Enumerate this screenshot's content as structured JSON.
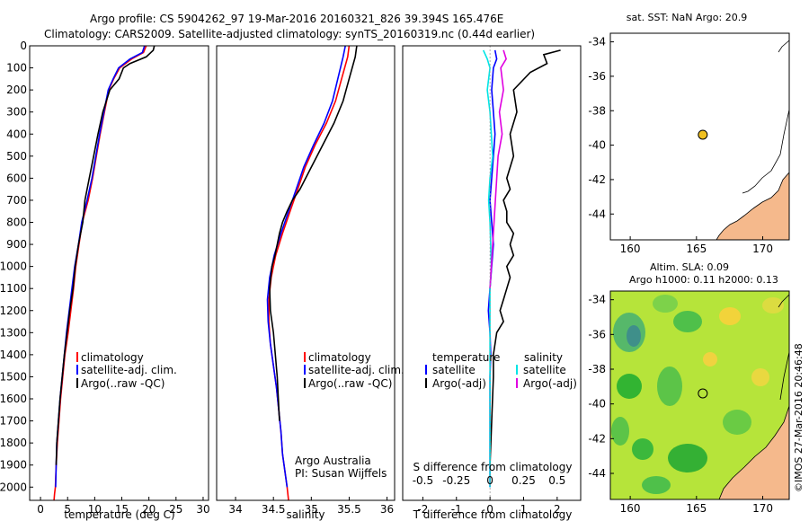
{
  "header": {
    "line1": "Argo profile: CS 5904262_97 19-Mar-2016 20160321_826 39.394S 165.476E",
    "line2": "Climatology: CARS2009. Satellite-adjusted climatology: synTS_20160319.nc (0.44d earlier)"
  },
  "credit": "©IMOS 27-Mar-2016 20:46:48",
  "colors": {
    "climatology": "#ff0000",
    "satellite": "#0000ff",
    "argo": "#000000",
    "salinity_satellite": "#00e5e5",
    "salinity_argo": "#e000e0",
    "float_marker": "#f0c020",
    "land": "#f5b98c"
  },
  "chart_data": [
    {
      "type": "line",
      "name": "temperature-profile",
      "title": "",
      "xlabel": "temperature (deg C)",
      "ylabel": "",
      "xlim": [
        -2,
        31
      ],
      "ylim": [
        2060,
        0
      ],
      "xticks": [
        "0",
        "5",
        "10",
        "15",
        "20",
        "25",
        "30"
      ],
      "xtick_values": [
        0,
        5,
        10,
        15,
        20,
        25,
        30
      ],
      "yticks": [
        "0",
        "100",
        "200",
        "300",
        "400",
        "500",
        "600",
        "700",
        "800",
        "900",
        "1000",
        "1100",
        "1200",
        "1300",
        "1400",
        "1500",
        "1600",
        "1700",
        "1800",
        "1900",
        "2000"
      ],
      "ytick_values": [
        0,
        100,
        200,
        300,
        400,
        500,
        600,
        700,
        800,
        900,
        1000,
        1100,
        1200,
        1300,
        1400,
        1500,
        1600,
        1700,
        1800,
        1900,
        2000
      ],
      "legend": {
        "position": "bottom-center",
        "entries": [
          "climatology",
          "satellite-adj. clim.",
          "Argo(..raw -QC)"
        ]
      },
      "series": [
        {
          "name": "climatology",
          "color": "#ff0000",
          "x": [
            19.5,
            19,
            16.8,
            14.6,
            13.5,
            12.6,
            11.8,
            11,
            10.3,
            9.6,
            8.8,
            7.7,
            7.1,
            6.5,
            6.1,
            5.6,
            5.1,
            4.5,
            4.1,
            3.7,
            3.4,
            3.1,
            2.9,
            2.75,
            2.6,
            2.5
          ],
          "y": [
            0,
            30,
            60,
            100,
            150,
            200,
            300,
            400,
            500,
            600,
            700,
            800,
            900,
            1000,
            1100,
            1200,
            1300,
            1400,
            1500,
            1600,
            1700,
            1800,
            1900,
            2000,
            2030,
            2060
          ]
        },
        {
          "name": "satellite-adj. clim.",
          "color": "#0000ff",
          "x": [
            19.2,
            18.8,
            16.5,
            14.4,
            13.4,
            12.5,
            11.7,
            10.9,
            10.2,
            9.5,
            8.6,
            7.6,
            7.0,
            6.3,
            5.8,
            5.3,
            4.8,
            4.4,
            4.0,
            3.6,
            3.3,
            3.0,
            2.9,
            2.8
          ],
          "y": [
            0,
            30,
            60,
            100,
            150,
            200,
            300,
            400,
            500,
            600,
            700,
            800,
            900,
            1000,
            1100,
            1200,
            1300,
            1400,
            1500,
            1600,
            1700,
            1800,
            1900,
            2000
          ]
        },
        {
          "name": "Argo(..raw -QC)",
          "color": "#000000",
          "x": [
            21,
            20.8,
            19.5,
            16.5,
            15.3,
            14.5,
            12.8,
            11.5,
            10.6,
            9.8,
            9.0,
            8.2,
            7.8,
            7.0,
            6.7,
            6.4,
            6.2,
            6.0,
            5.4,
            4.9,
            4.4,
            4.0,
            3.6,
            3.3,
            3.0,
            2.9
          ],
          "y": [
            0,
            20,
            50,
            80,
            100,
            150,
            200,
            300,
            400,
            500,
            600,
            700,
            800,
            900,
            950,
            1000,
            1050,
            1100,
            1200,
            1300,
            1400,
            1500,
            1600,
            1700,
            1800,
            1900
          ]
        }
      ]
    },
    {
      "type": "line",
      "name": "salinity-profile",
      "title": "",
      "xlabel": "salinity",
      "ylabel": "",
      "xlim": [
        33.75,
        36.1
      ],
      "ylim": [
        2060,
        0
      ],
      "xticks": [
        "34",
        "34.5",
        "35",
        "35.5",
        "36"
      ],
      "xtick_values": [
        34,
        34.5,
        35,
        35.5,
        36
      ],
      "annotations": [
        "Argo Australia",
        "PI: Susan Wijffels"
      ],
      "legend": {
        "position": "bottom-center",
        "entries": [
          "climatology",
          "satellite-adj. clim.",
          "Argo(..raw -QC)"
        ]
      },
      "series": [
        {
          "name": "climatology",
          "color": "#ff0000",
          "x": [
            35.5,
            35.48,
            35.4,
            35.32,
            35.2,
            35.05,
            34.92,
            34.82,
            34.72,
            34.62,
            34.53,
            34.47,
            34.44,
            34.44,
            34.46,
            34.5,
            34.54,
            34.57,
            34.6,
            34.62,
            34.64,
            34.66,
            34.68,
            34.69,
            34.7
          ],
          "y": [
            0,
            50,
            150,
            250,
            350,
            450,
            550,
            650,
            750,
            850,
            950,
            1050,
            1150,
            1250,
            1350,
            1450,
            1550,
            1650,
            1750,
            1850,
            1900,
            1950,
            2000,
            2030,
            2060
          ]
        },
        {
          "name": "satellite-adj. clim.",
          "color": "#0000ff",
          "x": [
            35.45,
            35.42,
            35.35,
            35.28,
            35.17,
            35.03,
            34.9,
            34.8,
            34.7,
            34.6,
            34.51,
            34.45,
            34.42,
            34.43,
            34.46,
            34.5,
            34.54,
            34.57,
            34.6,
            34.62,
            34.64,
            34.66,
            34.68
          ],
          "y": [
            0,
            50,
            150,
            250,
            350,
            450,
            550,
            650,
            750,
            850,
            950,
            1050,
            1150,
            1250,
            1350,
            1450,
            1550,
            1650,
            1750,
            1850,
            1900,
            1950,
            2000
          ]
        },
        {
          "name": "Argo(..raw -QC)",
          "color": "#000000",
          "x": [
            35.6,
            35.58,
            35.5,
            35.42,
            35.3,
            35.15,
            35.0,
            34.85,
            34.75,
            34.68,
            34.62,
            34.58,
            34.55,
            34.52,
            34.48,
            34.45,
            34.46,
            34.5,
            34.55,
            34.58
          ],
          "y": [
            0,
            50,
            150,
            250,
            350,
            450,
            550,
            650,
            700,
            750,
            800,
            850,
            900,
            950,
            1000,
            1100,
            1200,
            1300,
            1500,
            1700
          ]
        }
      ]
    },
    {
      "type": "line",
      "name": "difference-profile",
      "title": "",
      "xlabel": "T difference from climatology",
      "xlabel_top": "S difference from climatology",
      "ylabel": "",
      "xlim": [
        -2.6,
        2.7
      ],
      "ylim": [
        2060,
        0
      ],
      "xticks": [
        "-2",
        "-1",
        "0",
        "1",
        "2"
      ],
      "xtick_values": [
        -2,
        -1,
        0,
        1,
        2
      ],
      "xticks_top": [
        "-0.5",
        "-0.25",
        "0",
        "0.25",
        "0.5"
      ],
      "xtick_top_values": [
        -0.5,
        -0.25,
        0,
        0.25,
        0.5
      ],
      "legend": {
        "position": "bottom-center",
        "headers": [
          "temperature",
          "salinity"
        ],
        "entries": [
          "satellite",
          "Argo(-adj)",
          "satellite",
          "Argo(-adj)"
        ]
      },
      "series": [
        {
          "name": "temperature satellite",
          "color": "#0000ff",
          "x": [
            0.15,
            0.2,
            0.1,
            0.05,
            0.1,
            0.15,
            0.1,
            0.05,
            0.0,
            0.05,
            0.1,
            0.05,
            0.0,
            -0.05,
            0.0,
            0.02,
            0.0,
            0.0,
            0.0,
            0.0
          ],
          "y": [
            20,
            60,
            100,
            200,
            300,
            400,
            500,
            600,
            700,
            800,
            900,
            1000,
            1100,
            1200,
            1300,
            1400,
            1500,
            1600,
            1800,
            2000
          ]
        },
        {
          "name": "temperature Argo(-adj)",
          "color": "#000000",
          "x": [
            2.1,
            1.6,
            1.7,
            1.2,
            0.7,
            0.8,
            0.6,
            0.7,
            0.5,
            0.6,
            0.4,
            0.5,
            0.5,
            0.7,
            0.6,
            0.7,
            0.5,
            0.6,
            0.5,
            0.4,
            0.3,
            0.4,
            0.2,
            0.1,
            0.1,
            0.05,
            0.0
          ],
          "y": [
            20,
            40,
            80,
            120,
            200,
            300,
            400,
            500,
            600,
            650,
            700,
            750,
            800,
            850,
            900,
            950,
            1000,
            1050,
            1100,
            1150,
            1200,
            1250,
            1300,
            1400,
            1500,
            1700,
            1900
          ]
        },
        {
          "name": "salinity satellite",
          "color": "#00e5e5",
          "x": [
            -0.05,
            -0.02,
            0.0,
            -0.02,
            0.0,
            0.01,
            0.02,
            0.0,
            -0.01,
            0.0,
            0.01,
            0.0,
            0.0,
            0.0,
            0.0,
            0.0
          ],
          "y": [
            20,
            60,
            100,
            200,
            300,
            400,
            500,
            600,
            700,
            800,
            1000,
            1100,
            1200,
            1400,
            1700,
            2000
          ]
        },
        {
          "name": "salinity Argo(-adj)",
          "color": "#e000e0",
          "x": [
            0.1,
            0.12,
            0.08,
            0.1,
            0.07,
            0.09,
            0.06,
            0.05,
            0.04,
            0.03,
            0.02,
            0.01,
            0.0
          ],
          "y": [
            20,
            60,
            100,
            200,
            300,
            400,
            500,
            600,
            700,
            800,
            900,
            1000,
            1100
          ]
        }
      ]
    },
    {
      "type": "scatter",
      "name": "sst-map",
      "title": "sat. SST: NaN Argo: 20.9",
      "xlim": [
        158.5,
        172
      ],
      "ylim": [
        -45.5,
        -33.5
      ],
      "xticks": [
        "160",
        "165",
        "170"
      ],
      "xtick_values": [
        160,
        165,
        170
      ],
      "yticks": [
        "-34",
        "-36",
        "-38",
        "-40",
        "-42",
        "-44"
      ],
      "ytick_values": [
        -34,
        -36,
        -38,
        -40,
        -42,
        -44
      ],
      "points": [
        {
          "lon": 165.476,
          "lat": -39.394
        }
      ]
    },
    {
      "type": "heatmap",
      "name": "sla-map",
      "title": "Altim. SLA: 0.09",
      "subtitle": "Argo h1000: 0.11 h2000: 0.13",
      "xlim": [
        158.5,
        172
      ],
      "ylim": [
        -45.5,
        -33.5
      ],
      "xticks": [
        "160",
        "165",
        "170"
      ],
      "xtick_values": [
        160,
        165,
        170
      ],
      "yticks": [
        "-34",
        "-36",
        "-38",
        "-40",
        "-42",
        "-44"
      ],
      "ytick_values": [
        -34,
        -36,
        -38,
        -40,
        -42,
        -44
      ],
      "points": [
        {
          "lon": 165.476,
          "lat": -39.394
        }
      ]
    }
  ]
}
